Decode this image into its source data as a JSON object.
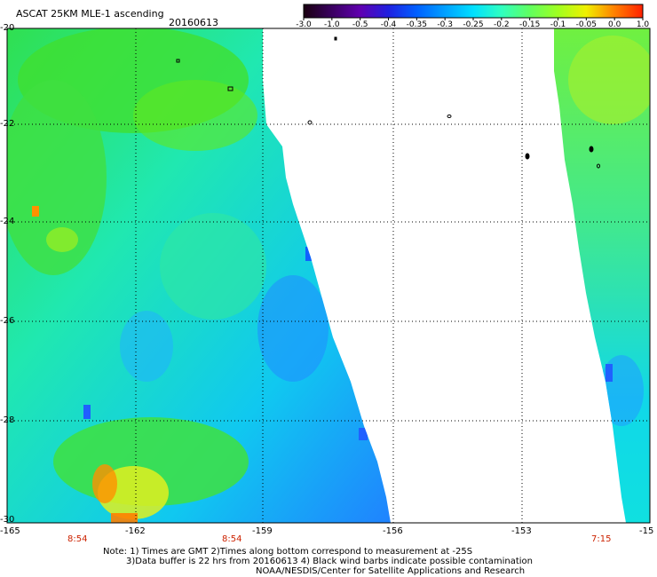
{
  "header": {
    "title": "ASCAT 25KM MLE-1 ascending",
    "date": "20160613"
  },
  "colorbar": {
    "labels": [
      "-3.0",
      "-1.0",
      "-0.5",
      "-0.4",
      "-0.35",
      "-0.3",
      "-0.25",
      "-0.2",
      "-0.15",
      "-0.1",
      "-0.05",
      "0.0",
      "1.0"
    ],
    "colors": [
      "#1a0010",
      "#3a0060",
      "#6000b0",
      "#2020e0",
      "#0060ff",
      "#00a0ff",
      "#00e0ff",
      "#30ffc0",
      "#60ff60",
      "#a0ff20",
      "#f0f000",
      "#ff8000",
      "#ff2000"
    ]
  },
  "axes": {
    "x_ticks": [
      "-165",
      "-162",
      "-159",
      "-156",
      "-153",
      "-15"
    ],
    "y_ticks": [
      "-20",
      "-22",
      "-24",
      "-26",
      "-28",
      "-30"
    ]
  },
  "time_labels": [
    "8:54",
    "8:54",
    "7:15"
  ],
  "notes": {
    "line1": "Note: 1) Times are GMT 2)Times along bottom correspond to measurement at -25S",
    "line2": "3)Data buffer is 22 hrs from 20160613 4) Black wind barbs indicate possible contamination",
    "line3": "NOAA/NESDIS/Center for Satellite Applications and Research"
  }
}
